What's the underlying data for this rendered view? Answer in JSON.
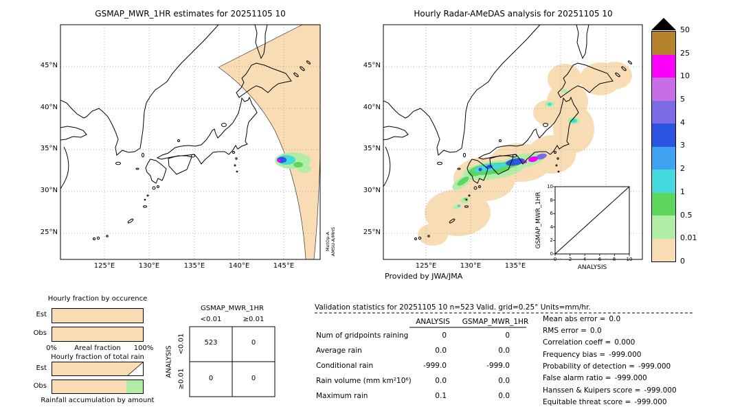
{
  "palette": {
    "trace": "#f8ddb4",
    "light_green": "#b2eda7",
    "green": "#5cd65c",
    "cyan": "#45d8dc",
    "light_blue": "#3fa3f2",
    "blue": "#2b55e0",
    "purple": "#7b6be4",
    "orchid": "#c76ee4",
    "magenta": "#fa00fa",
    "brown": "#b5832c"
  },
  "left_map": {
    "title": "GSMAP_MWR_1HR estimates for 20251105 10",
    "lat_ticks": [
      "45°N",
      "40°N",
      "35°N",
      "30°N",
      "25°N"
    ],
    "lon_ticks": [
      "125°E",
      "130°E",
      "135°E",
      "140°E",
      "145°E"
    ],
    "satellite_line1": "MetOp-A",
    "satellite_line2": "AMSU-A/MHS"
  },
  "right_map": {
    "title": "Hourly Radar-AMeDAS analysis for 20251105 10",
    "lat_ticks": [
      "45°N",
      "40°N",
      "35°N",
      "30°N",
      "25°N"
    ],
    "lon_ticks": [
      "125°E",
      "130°E",
      "135°E"
    ],
    "credit": "Provided by JWA/JMA",
    "inset": {
      "ylabel": "GSMAP_MWR_1HR",
      "xlabel": "ANALYSIS",
      "x_ticks": [
        "0",
        "2",
        "4",
        "6",
        "8",
        "10"
      ],
      "y_ticks": [
        "0",
        "2",
        "4",
        "6",
        "8",
        "10"
      ]
    }
  },
  "colorbar": {
    "tick_labels": [
      "50",
      "25",
      "10",
      "5",
      "4",
      "3",
      "2",
      "1",
      "0.5",
      "0.01",
      "0"
    ],
    "colors_top_to_bottom": [
      "#b5832c",
      "#fa00fa",
      "#c76ee4",
      "#7b6be4",
      "#2b55e0",
      "#3fa3f2",
      "#45d8dc",
      "#5cd65c",
      "#b2eda7",
      "#f8ddb4"
    ],
    "overflow_color": "#000000"
  },
  "fraction_charts": {
    "occurrence": {
      "title": "Hourly fraction by occurence",
      "row_labels": [
        "Est",
        "Obs"
      ],
      "x_min_label": "0%",
      "x_max_label": "100%",
      "x_axis_label": "Areal fraction",
      "bars": {
        "est": [
          {
            "color": "#f8ddb4",
            "pct": 100
          }
        ],
        "obs": [
          {
            "color": "#f8ddb4",
            "pct": 100
          }
        ]
      }
    },
    "total_rain": {
      "title": "Hourly fraction of total rain",
      "row_labels": [
        "Est",
        "Obs"
      ],
      "x_axis_label": "Rainfall accumulation by amount",
      "bars": {
        "est": [
          {
            "color": "#f8ddb4",
            "pct": 100
          }
        ],
        "obs": [
          {
            "color": "#f8ddb4",
            "pct": 82
          },
          {
            "color": "#b2eda7",
            "pct": 18
          }
        ]
      }
    }
  },
  "contingency": {
    "col_title": "GSMAP_MWR_1HR",
    "row_title": "ANALYSIS",
    "col_labels": [
      "<0.01",
      "≥0.01"
    ],
    "row_labels": [
      "<0.01",
      "≥0.01"
    ],
    "cells": [
      [
        "523",
        "0"
      ],
      [
        "0",
        "0"
      ]
    ]
  },
  "stats": {
    "title": "Validation statistics for 20251105 10  n=523 Valid. grid=0.25° Units=mm/hr.",
    "col_headers": [
      "ANALYSIS",
      "GSMAP_MWR_1HR"
    ],
    "rows": [
      {
        "label": "Num of gridpoints raining",
        "analysis": "0",
        "gsmap": "0"
      },
      {
        "label": "Average rain",
        "analysis": "0.0",
        "gsmap": "0.0"
      },
      {
        "label": "Conditional rain",
        "analysis": "-999.0",
        "gsmap": "-999.0"
      },
      {
        "label": "Rain volume (mm km²10⁶)",
        "analysis": "0.0",
        "gsmap": "0.0"
      },
      {
        "label": "Maximum rain",
        "analysis": "0.1",
        "gsmap": "0.0"
      }
    ],
    "metrics": [
      {
        "label": "Mean abs error =",
        "value": "0.0"
      },
      {
        "label": "RMS error =",
        "value": "0.0"
      },
      {
        "label": "Correlation coeff =",
        "value": "0.000"
      },
      {
        "label": "Frequency bias =",
        "value": "-999.000"
      },
      {
        "label": "Probability of detection =",
        "value": "-999.000"
      },
      {
        "label": "False alarm ratio =",
        "value": "-999.000"
      },
      {
        "label": "Hanssen & Kuipers score =",
        "value": "-999.000"
      },
      {
        "label": "Equitable threat score =",
        "value": "-999.000"
      }
    ]
  },
  "chart_data": [
    {
      "type": "map",
      "title": "GSMAP_MWR_1HR estimates for 20251105 10",
      "lat_ticks": [
        "45°N",
        "40°N",
        "35°N",
        "30°N",
        "25°N"
      ],
      "lon_ticks": [
        "125°E",
        "130°E",
        "135°E",
        "140°E",
        "145°E"
      ],
      "satellite": "MetOp-A AMSU-A/MHS",
      "features": [
        "diagonal satellite swath filled with trace (0-0.01 mm/hr) color, wide near 45°N/138-149°E narrowing to a tip near 22°N/146°E",
        "single rain cell near 34°N 144.5°E: outer 0.01-0.5 ring, 1-2 cyan ring, 3-4 blue core, small >10 magenta pixel at west edge"
      ]
    },
    {
      "type": "map",
      "title": "Hourly Radar-AMeDAS analysis for 20251105 10",
      "lat_ticks": [
        "45°N",
        "40°N",
        "35°N",
        "30°N",
        "25°N"
      ],
      "lon_ticks": [
        "125°E",
        "130°E",
        "135°E"
      ],
      "credit": "Provided by JWA/JMA",
      "features": [
        "widespread trace rain (0-0.01 mm/hr) blobs offshore from Okinawa (26°N) northeast to Hokkaido (44°N)",
        "rain band 0.5-5 mm/hr along south coast of western Japan 131-137°E around 33-34.5°N",
        "blue 3-4 mm/hr segment near 34°N 135-136.5°E",
        "magenta >10 mm/hr peak near 34°N 136.8°E and purple 4-5 near 34.2°N 137.9°E",
        "scattered light cells near Kyushu, Amami and northern Tohoku coasts"
      ]
    },
    {
      "type": "scatter",
      "title": "inset comparison",
      "xlabel": "ANALYSIS",
      "ylabel": "GSMAP_MWR_1HR",
      "xlim": [
        0,
        10
      ],
      "ylim": [
        0,
        10
      ],
      "x_ticks": [
        0,
        2,
        4,
        6,
        8,
        10
      ],
      "y_ticks": [
        0,
        2,
        4,
        6,
        8,
        10
      ],
      "points": [],
      "reference_line": "y = x"
    },
    {
      "type": "bar",
      "title": "Hourly fraction by occurence",
      "orientation": "horizontal",
      "categories": [
        "Est",
        "Obs"
      ],
      "series": [
        {
          "name": "0-0.01 mm/hr",
          "values": [
            100,
            100
          ]
        }
      ],
      "xlabel": "Areal fraction",
      "xlim": [
        "0%",
        "100%"
      ]
    },
    {
      "type": "bar",
      "title": "Hourly fraction of total rain",
      "orientation": "horizontal",
      "categories": [
        "Est",
        "Obs"
      ],
      "series": [
        {
          "name": "0-0.01 mm/h",
          "values": [
            100,
            82
          ]
        },
        {
          "name": "0.01-0.5 mm/hr",
          "values": [
            0,
            18
          ]
        }
      ],
      "xlabel": "Rainfall accumulation by amount"
    },
    {
      "type": "heatmap",
      "title": "Contingency table GSMAP_MWR_1HR vs ANALYSIS",
      "columns": [
        "<0.01",
        "≥0.01"
      ],
      "rows": [
        "<0.01",
        "≥0.01"
      ],
      "values": [
        [
          523,
          0
        ],
        [
          0,
          0
        ]
      ]
    },
    {
      "type": "table",
      "title": "Validation statistics for 20251105 10 n=523 Valid. grid=0.25° Units=mm/hr.",
      "columns": [
        "",
        "ANALYSIS",
        "GSMAP_MWR_1HR"
      ],
      "rows": [
        [
          "Num of gridpoints raining",
          "0",
          "0"
        ],
        [
          "Average rain",
          "0.0",
          "0.0"
        ],
        [
          "Conditional rain",
          "-999.0",
          "-999.0"
        ],
        [
          "Rain volume (mm km²10⁶)",
          "0.0",
          "0.0"
        ],
        [
          "Maximum rain",
          "0.1",
          "0.0"
        ]
      ],
      "scores": {
        "Mean abs error": "0.0",
        "RMS error": "0.0",
        "Correlation coeff": "0.000",
        "Frequency bias": "-999.000",
        "Probability of detection": "-999.000",
        "False alarm ratio": "-999.000",
        "Hanssen & Kuipers score": "-999.000",
        "Equitable threat score": "-999.000"
      }
    },
    {
      "type": "colorbar",
      "units": "mm/hr",
      "boundaries": [
        0,
        0.01,
        0.5,
        1,
        2,
        3,
        4,
        5,
        10,
        25,
        50
      ],
      "colors_low_to_high": [
        "#f8ddb4",
        "#b2eda7",
        "#5cd65c",
        "#45d8dc",
        "#3fa3f2",
        "#2b55e0",
        "#7b6be4",
        "#c76ee4",
        "#fa00fa",
        "#b5832c"
      ],
      "overflow": ">50 = black triangle"
    }
  ]
}
